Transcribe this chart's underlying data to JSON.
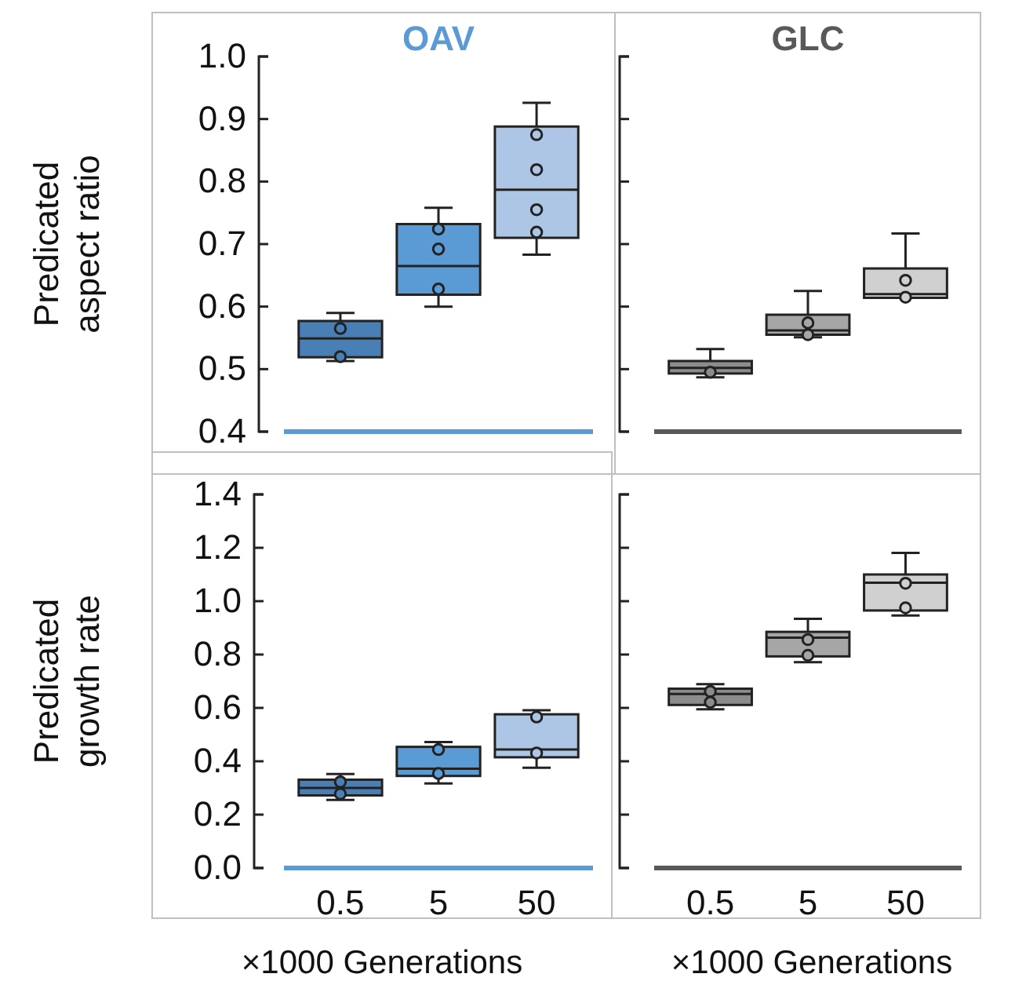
{
  "chart_data": [
    {
      "type": "box",
      "title": "OAV",
      "ylabel": "Predicated aspect ratio",
      "categories": [
        "0.5",
        "5",
        "50"
      ],
      "ylim": [
        0.4,
        1.0
      ],
      "yticks": [
        0.4,
        0.5,
        0.6,
        0.7,
        0.8,
        0.9,
        {
          "value": 1.0,
          "label": "1.0"
        }
      ],
      "tick_labels": "y",
      "marker": "circle",
      "grid": false,
      "series": [
        {
          "type": "box",
          "color": "#5b9bd5",
          "colors": [
            "#4a7fb5",
            "#5b9bd5",
            "#adc6e6"
          ],
          "boxes": [
            {
              "low": 0.513,
              "q1": 0.519,
              "median": 0.549,
              "q3": 0.577,
              "high": 0.59
            },
            {
              "low": 0.6,
              "q1": 0.619,
              "median": 0.665,
              "q3": 0.732,
              "high": 0.758
            },
            {
              "low": 0.683,
              "q1": 0.71,
              "median": 0.787,
              "q3": 0.888,
              "high": 0.926
            }
          ]
        },
        {
          "type": "scatter",
          "x": [
            "0.5",
            "0.5",
            "5",
            "5",
            "5",
            "50",
            "50",
            "50",
            "50"
          ],
          "values": [
            0.565,
            0.52,
            0.724,
            0.692,
            0.628,
            0.875,
            0.819,
            0.755,
            0.719
          ],
          "colors": [
            "#4a7fb5",
            "#4a7fb5",
            "#5b9bd5",
            "#5b9bd5",
            "#5b9bd5",
            "#adc6e6",
            "#adc6e6",
            "#adc6e6",
            "#adc6e6"
          ]
        }
      ]
    },
    {
      "type": "box",
      "title": "GLC",
      "categories": [
        "0.5",
        "5",
        "50"
      ],
      "ylim": [
        0.4,
        1.0
      ],
      "yticks": [
        {
          "value": 0.4,
          "label": null
        },
        {
          "value": 0.5,
          "label": null
        },
        {
          "value": 0.6,
          "label": null
        },
        {
          "value": 0.7,
          "label": null
        },
        {
          "value": 0.8,
          "label": null
        },
        {
          "value": 0.9,
          "label": null
        },
        {
          "value": 1.0,
          "label": null
        }
      ],
      "tick_labels": false,
      "marker": "circle",
      "grid": false,
      "series": [
        {
          "type": "box",
          "color": "#595959",
          "colors": [
            "#8c8c8c",
            "#a6a6a6",
            "#d0d0d0"
          ],
          "boxes": [
            {
              "low": 0.487,
              "q1": 0.493,
              "median": 0.502,
              "q3": 0.513,
              "high": 0.532
            },
            {
              "low": 0.551,
              "q1": 0.555,
              "median": 0.562,
              "q3": 0.587,
              "high": 0.625
            },
            {
              "low": 0.614,
              "q1": 0.614,
              "median": 0.62,
              "q3": 0.661,
              "high": 0.717
            }
          ]
        },
        {
          "type": "scatter",
          "x": [
            "0.5",
            "5",
            "5",
            "50",
            "50"
          ],
          "values": [
            0.495,
            0.574,
            0.555,
            0.642,
            0.615
          ],
          "colors": [
            "#8c8c8c",
            "#a6a6a6",
            "#a6a6a6",
            "#d0d0d0",
            "#d0d0d0"
          ]
        }
      ]
    },
    {
      "type": "box",
      "ylabel": "Predicated growth rate",
      "xlabel": "×1000 Generations",
      "categories": [
        "0.5",
        "5",
        "50"
      ],
      "ylim": [
        0.0,
        1.4
      ],
      "yticks": [
        {
          "value": 0.0,
          "label": "0.0"
        },
        0.2,
        0.4,
        0.6,
        0.8,
        {
          "value": 1.0,
          "label": "1.0"
        },
        1.2,
        1.4
      ],
      "marker": "circle",
      "grid": false,
      "series": [
        {
          "type": "box",
          "color": "#5b9bd5",
          "colors": [
            "#4a7fb5",
            "#5b9bd5",
            "#adc6e6"
          ],
          "boxes": [
            {
              "low": 0.255,
              "q1": 0.272,
              "median": 0.3,
              "q3": 0.331,
              "high": 0.352
            },
            {
              "low": 0.317,
              "q1": 0.345,
              "median": 0.372,
              "q3": 0.454,
              "high": 0.472
            },
            {
              "low": 0.376,
              "q1": 0.415,
              "median": 0.444,
              "q3": 0.576,
              "high": 0.591
            }
          ]
        },
        {
          "type": "scatter",
          "x": [
            "0.5",
            "0.5",
            "5",
            "5",
            "50",
            "50"
          ],
          "values": [
            0.323,
            0.278,
            0.444,
            0.354,
            0.566,
            0.431
          ],
          "colors": [
            "#4a7fb5",
            "#4a7fb5",
            "#5b9bd5",
            "#5b9bd5",
            "#adc6e6",
            "#adc6e6"
          ]
        }
      ]
    },
    {
      "type": "box",
      "xlabel": "×1000 Generations",
      "categories": [
        "0.5",
        "5",
        "50"
      ],
      "ylim": [
        0.0,
        1.4
      ],
      "yticks": [
        {
          "value": 0.0,
          "label": null
        },
        {
          "value": 0.2,
          "label": null
        },
        {
          "value": 0.4,
          "label": null
        },
        {
          "value": 0.6,
          "label": null
        },
        {
          "value": 0.8,
          "label": null
        },
        {
          "value": 1.0,
          "label": null
        },
        {
          "value": 1.2,
          "label": null
        },
        {
          "value": 1.4,
          "label": null
        }
      ],
      "tick_labels": "x",
      "marker": "circle",
      "grid": false,
      "series": [
        {
          "type": "box",
          "color": "#595959",
          "colors": [
            "#8c8c8c",
            "#a6a6a6",
            "#d0d0d0"
          ],
          "boxes": [
            {
              "low": 0.595,
              "q1": 0.611,
              "median": 0.652,
              "q3": 0.672,
              "high": 0.689
            },
            {
              "low": 0.771,
              "q1": 0.793,
              "median": 0.863,
              "q3": 0.885,
              "high": 0.934
            },
            {
              "low": 0.946,
              "q1": 0.965,
              "median": 1.069,
              "q3": 1.1,
              "high": 1.181
            }
          ]
        },
        {
          "type": "scatter",
          "x": [
            "0.5",
            "0.5",
            "5",
            "5",
            "50",
            "50"
          ],
          "values": [
            0.662,
            0.621,
            0.856,
            0.797,
            1.067,
            0.975
          ],
          "colors": [
            "#8c8c8c",
            "#8c8c8c",
            "#a6a6a6",
            "#a6a6a6",
            "#d0d0d0",
            "#d0d0d0"
          ]
        }
      ]
    }
  ]
}
